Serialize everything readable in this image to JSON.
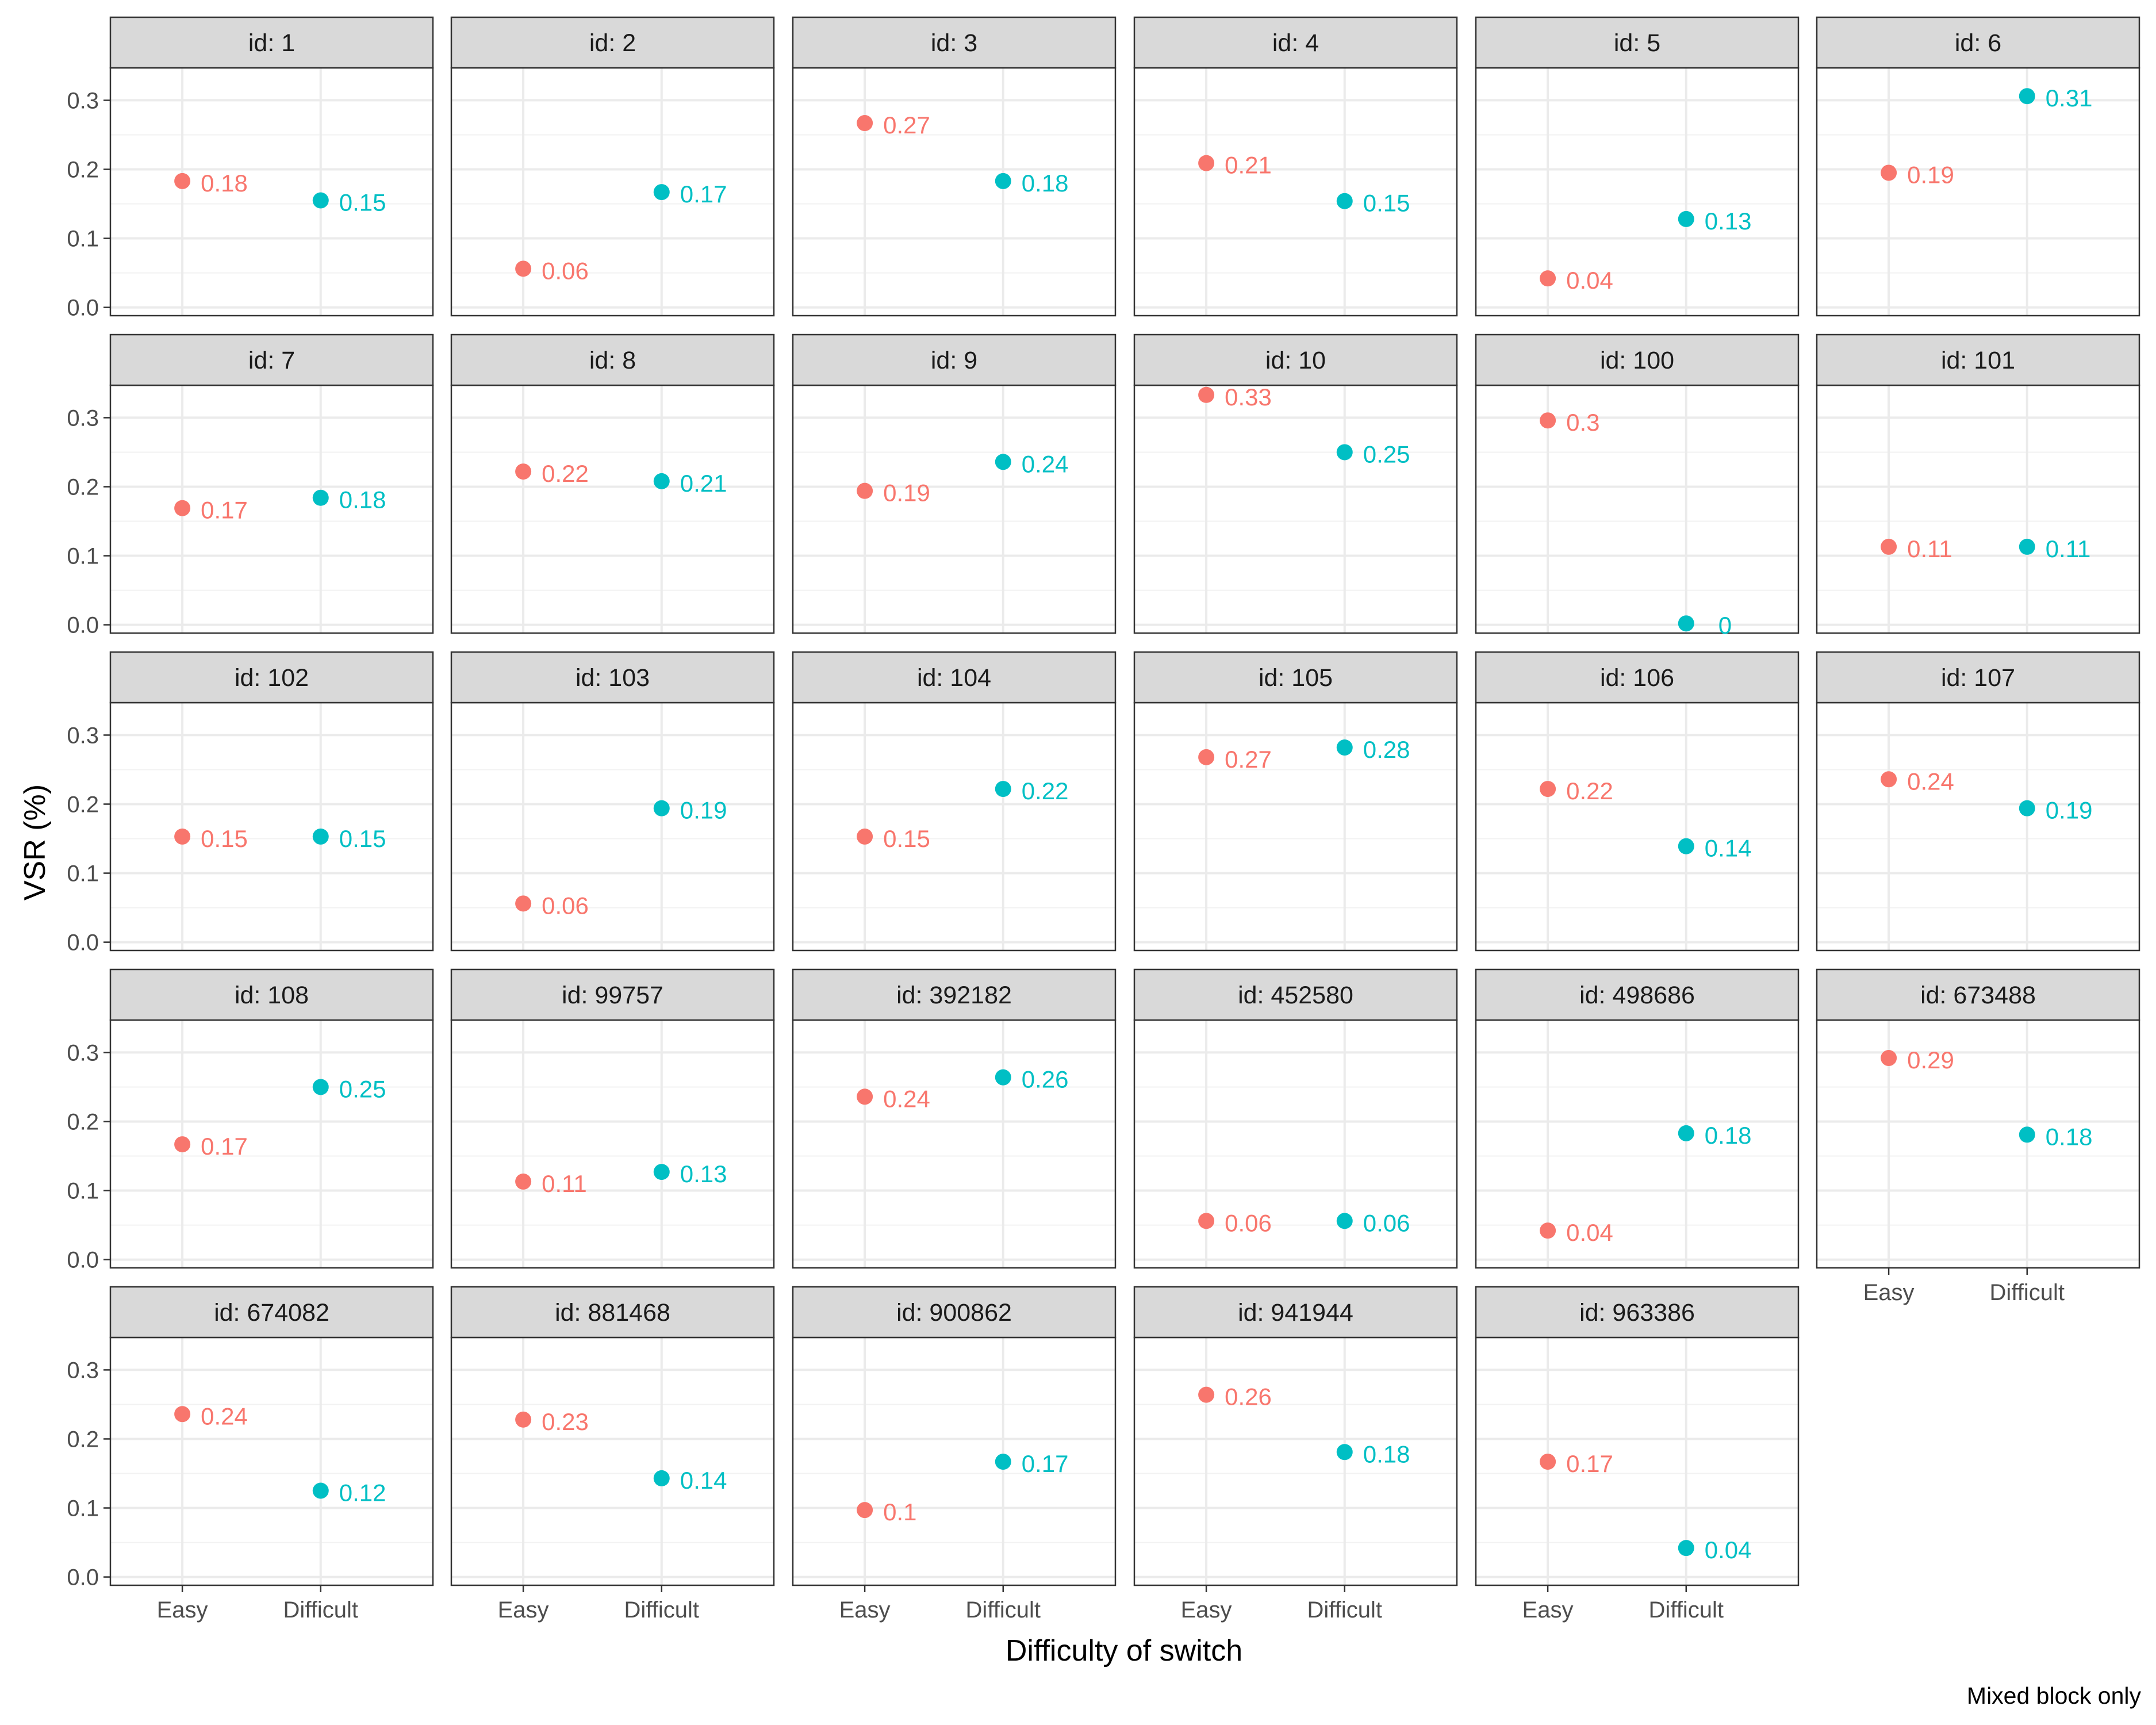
{
  "chart_data": {
    "type": "scatter",
    "facet_prefix": "id: ",
    "categories": [
      "Easy",
      "Difficult"
    ],
    "xlabel": "Difficulty of switch",
    "ylabel": "VSR (%)",
    "caption": "Mixed block only",
    "ylim": [
      -0.012,
      0.347
    ],
    "yticks": [
      0.0,
      0.1,
      0.2,
      0.3
    ],
    "ytick_labels": [
      "0.0",
      "0.1",
      "0.2",
      "0.3"
    ],
    "grid": true,
    "legend": "none",
    "colors": {
      "Easy": "#F8766D",
      "Difficult": "#00BFC4"
    },
    "panels": [
      {
        "id": "1",
        "easy": 0.183,
        "difficult": 0.155,
        "easy_label": "0.18",
        "difficult_label": "0.15"
      },
      {
        "id": "2",
        "easy": 0.056,
        "difficult": 0.167,
        "easy_label": "0.06",
        "difficult_label": "0.17"
      },
      {
        "id": "3",
        "easy": 0.267,
        "difficult": 0.183,
        "easy_label": "0.27",
        "difficult_label": "0.18"
      },
      {
        "id": "4",
        "easy": 0.209,
        "difficult": 0.154,
        "easy_label": "0.21",
        "difficult_label": "0.15"
      },
      {
        "id": "5",
        "easy": 0.042,
        "difficult": 0.128,
        "easy_label": "0.04",
        "difficult_label": "0.13"
      },
      {
        "id": "6",
        "easy": 0.195,
        "difficult": 0.306,
        "easy_label": "0.19",
        "difficult_label": "0.31"
      },
      {
        "id": "7",
        "easy": 0.169,
        "difficult": 0.184,
        "easy_label": "0.17",
        "difficult_label": "0.18"
      },
      {
        "id": "8",
        "easy": 0.222,
        "difficult": 0.208,
        "easy_label": "0.22",
        "difficult_label": "0.21"
      },
      {
        "id": "9",
        "easy": 0.194,
        "difficult": 0.236,
        "easy_label": "0.19",
        "difficult_label": "0.24"
      },
      {
        "id": "10",
        "easy": 0.333,
        "difficult": 0.25,
        "easy_label": "0.33",
        "difficult_label": "0.25"
      },
      {
        "id": "100",
        "easy": 0.296,
        "difficult": 0.002,
        "easy_label": "0.3",
        "difficult_label": "0"
      },
      {
        "id": "101",
        "easy": 0.113,
        "difficult": 0.113,
        "easy_label": "0.11",
        "difficult_label": "0.11"
      },
      {
        "id": "102",
        "easy": 0.153,
        "difficult": 0.153,
        "easy_label": "0.15",
        "difficult_label": "0.15"
      },
      {
        "id": "103",
        "easy": 0.056,
        "difficult": 0.194,
        "easy_label": "0.06",
        "difficult_label": "0.19"
      },
      {
        "id": "104",
        "easy": 0.153,
        "difficult": 0.222,
        "easy_label": "0.15",
        "difficult_label": "0.22"
      },
      {
        "id": "105",
        "easy": 0.268,
        "difficult": 0.282,
        "easy_label": "0.27",
        "difficult_label": "0.28"
      },
      {
        "id": "106",
        "easy": 0.222,
        "difficult": 0.139,
        "easy_label": "0.22",
        "difficult_label": "0.14"
      },
      {
        "id": "107",
        "easy": 0.236,
        "difficult": 0.194,
        "easy_label": "0.24",
        "difficult_label": "0.19"
      },
      {
        "id": "108",
        "easy": 0.167,
        "difficult": 0.25,
        "easy_label": "0.17",
        "difficult_label": "0.25"
      },
      {
        "id": "99757",
        "easy": 0.113,
        "difficult": 0.127,
        "easy_label": "0.11",
        "difficult_label": "0.13"
      },
      {
        "id": "392182",
        "easy": 0.236,
        "difficult": 0.264,
        "easy_label": "0.24",
        "difficult_label": "0.26"
      },
      {
        "id": "452580",
        "easy": 0.056,
        "difficult": 0.056,
        "easy_label": "0.06",
        "difficult_label": "0.06"
      },
      {
        "id": "498686",
        "easy": 0.042,
        "difficult": 0.183,
        "easy_label": "0.04",
        "difficult_label": "0.18"
      },
      {
        "id": "673488",
        "easy": 0.292,
        "difficult": 0.181,
        "easy_label": "0.29",
        "difficult_label": "0.18"
      },
      {
        "id": "674082",
        "easy": 0.236,
        "difficult": 0.125,
        "easy_label": "0.24",
        "difficult_label": "0.12"
      },
      {
        "id": "881468",
        "easy": 0.228,
        "difficult": 0.143,
        "easy_label": "0.23",
        "difficult_label": "0.14"
      },
      {
        "id": "900862",
        "easy": 0.097,
        "difficult": 0.167,
        "easy_label": "0.1",
        "difficult_label": "0.17"
      },
      {
        "id": "941944",
        "easy": 0.264,
        "difficult": 0.181,
        "easy_label": "0.26",
        "difficult_label": "0.18"
      },
      {
        "id": "963386",
        "easy": 0.167,
        "difficult": 0.042,
        "easy_label": "0.17",
        "difficult_label": "0.04"
      }
    ]
  }
}
